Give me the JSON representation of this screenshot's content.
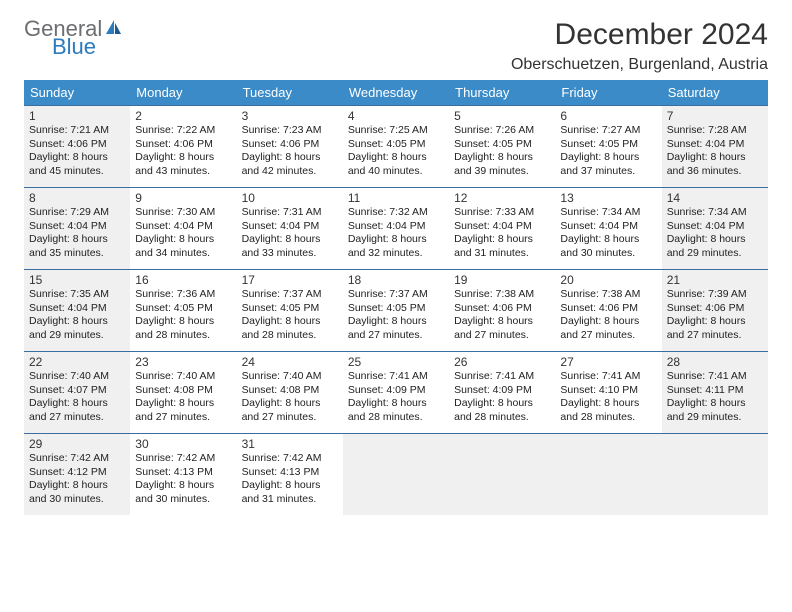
{
  "brand": {
    "part1": "General",
    "part2": "Blue"
  },
  "title": "December 2024",
  "location": "Oberschuetzen, Burgenland, Austria",
  "weekdays": [
    "Sunday",
    "Monday",
    "Tuesday",
    "Wednesday",
    "Thursday",
    "Friday",
    "Saturday"
  ],
  "colors": {
    "header_bg": "#3b8bc8",
    "header_text": "#ffffff",
    "border": "#3b6ea0",
    "shaded": "#f0f0f0",
    "logo_gray": "#6d6e71",
    "logo_blue": "#2b7bbf"
  },
  "weeks": [
    [
      {
        "n": "1",
        "shaded": true,
        "sunrise": "Sunrise: 7:21 AM",
        "sunset": "Sunset: 4:06 PM",
        "day1": "Daylight: 8 hours",
        "day2": "and 45 minutes."
      },
      {
        "n": "2",
        "sunrise": "Sunrise: 7:22 AM",
        "sunset": "Sunset: 4:06 PM",
        "day1": "Daylight: 8 hours",
        "day2": "and 43 minutes."
      },
      {
        "n": "3",
        "sunrise": "Sunrise: 7:23 AM",
        "sunset": "Sunset: 4:06 PM",
        "day1": "Daylight: 8 hours",
        "day2": "and 42 minutes."
      },
      {
        "n": "4",
        "sunrise": "Sunrise: 7:25 AM",
        "sunset": "Sunset: 4:05 PM",
        "day1": "Daylight: 8 hours",
        "day2": "and 40 minutes."
      },
      {
        "n": "5",
        "sunrise": "Sunrise: 7:26 AM",
        "sunset": "Sunset: 4:05 PM",
        "day1": "Daylight: 8 hours",
        "day2": "and 39 minutes."
      },
      {
        "n": "6",
        "sunrise": "Sunrise: 7:27 AM",
        "sunset": "Sunset: 4:05 PM",
        "day1": "Daylight: 8 hours",
        "day2": "and 37 minutes."
      },
      {
        "n": "7",
        "shaded": true,
        "sunrise": "Sunrise: 7:28 AM",
        "sunset": "Sunset: 4:04 PM",
        "day1": "Daylight: 8 hours",
        "day2": "and 36 minutes."
      }
    ],
    [
      {
        "n": "8",
        "shaded": true,
        "sunrise": "Sunrise: 7:29 AM",
        "sunset": "Sunset: 4:04 PM",
        "day1": "Daylight: 8 hours",
        "day2": "and 35 minutes."
      },
      {
        "n": "9",
        "sunrise": "Sunrise: 7:30 AM",
        "sunset": "Sunset: 4:04 PM",
        "day1": "Daylight: 8 hours",
        "day2": "and 34 minutes."
      },
      {
        "n": "10",
        "sunrise": "Sunrise: 7:31 AM",
        "sunset": "Sunset: 4:04 PM",
        "day1": "Daylight: 8 hours",
        "day2": "and 33 minutes."
      },
      {
        "n": "11",
        "sunrise": "Sunrise: 7:32 AM",
        "sunset": "Sunset: 4:04 PM",
        "day1": "Daylight: 8 hours",
        "day2": "and 32 minutes."
      },
      {
        "n": "12",
        "sunrise": "Sunrise: 7:33 AM",
        "sunset": "Sunset: 4:04 PM",
        "day1": "Daylight: 8 hours",
        "day2": "and 31 minutes."
      },
      {
        "n": "13",
        "sunrise": "Sunrise: 7:34 AM",
        "sunset": "Sunset: 4:04 PM",
        "day1": "Daylight: 8 hours",
        "day2": "and 30 minutes."
      },
      {
        "n": "14",
        "shaded": true,
        "sunrise": "Sunrise: 7:34 AM",
        "sunset": "Sunset: 4:04 PM",
        "day1": "Daylight: 8 hours",
        "day2": "and 29 minutes."
      }
    ],
    [
      {
        "n": "15",
        "shaded": true,
        "sunrise": "Sunrise: 7:35 AM",
        "sunset": "Sunset: 4:04 PM",
        "day1": "Daylight: 8 hours",
        "day2": "and 29 minutes."
      },
      {
        "n": "16",
        "sunrise": "Sunrise: 7:36 AM",
        "sunset": "Sunset: 4:05 PM",
        "day1": "Daylight: 8 hours",
        "day2": "and 28 minutes."
      },
      {
        "n": "17",
        "sunrise": "Sunrise: 7:37 AM",
        "sunset": "Sunset: 4:05 PM",
        "day1": "Daylight: 8 hours",
        "day2": "and 28 minutes."
      },
      {
        "n": "18",
        "sunrise": "Sunrise: 7:37 AM",
        "sunset": "Sunset: 4:05 PM",
        "day1": "Daylight: 8 hours",
        "day2": "and 27 minutes."
      },
      {
        "n": "19",
        "sunrise": "Sunrise: 7:38 AM",
        "sunset": "Sunset: 4:06 PM",
        "day1": "Daylight: 8 hours",
        "day2": "and 27 minutes."
      },
      {
        "n": "20",
        "sunrise": "Sunrise: 7:38 AM",
        "sunset": "Sunset: 4:06 PM",
        "day1": "Daylight: 8 hours",
        "day2": "and 27 minutes."
      },
      {
        "n": "21",
        "shaded": true,
        "sunrise": "Sunrise: 7:39 AM",
        "sunset": "Sunset: 4:06 PM",
        "day1": "Daylight: 8 hours",
        "day2": "and 27 minutes."
      }
    ],
    [
      {
        "n": "22",
        "shaded": true,
        "sunrise": "Sunrise: 7:40 AM",
        "sunset": "Sunset: 4:07 PM",
        "day1": "Daylight: 8 hours",
        "day2": "and 27 minutes."
      },
      {
        "n": "23",
        "sunrise": "Sunrise: 7:40 AM",
        "sunset": "Sunset: 4:08 PM",
        "day1": "Daylight: 8 hours",
        "day2": "and 27 minutes."
      },
      {
        "n": "24",
        "sunrise": "Sunrise: 7:40 AM",
        "sunset": "Sunset: 4:08 PM",
        "day1": "Daylight: 8 hours",
        "day2": "and 27 minutes."
      },
      {
        "n": "25",
        "sunrise": "Sunrise: 7:41 AM",
        "sunset": "Sunset: 4:09 PM",
        "day1": "Daylight: 8 hours",
        "day2": "and 28 minutes."
      },
      {
        "n": "26",
        "sunrise": "Sunrise: 7:41 AM",
        "sunset": "Sunset: 4:09 PM",
        "day1": "Daylight: 8 hours",
        "day2": "and 28 minutes."
      },
      {
        "n": "27",
        "sunrise": "Sunrise: 7:41 AM",
        "sunset": "Sunset: 4:10 PM",
        "day1": "Daylight: 8 hours",
        "day2": "and 28 minutes."
      },
      {
        "n": "28",
        "shaded": true,
        "sunrise": "Sunrise: 7:41 AM",
        "sunset": "Sunset: 4:11 PM",
        "day1": "Daylight: 8 hours",
        "day2": "and 29 minutes."
      }
    ],
    [
      {
        "n": "29",
        "shaded": true,
        "sunrise": "Sunrise: 7:42 AM",
        "sunset": "Sunset: 4:12 PM",
        "day1": "Daylight: 8 hours",
        "day2": "and 30 minutes."
      },
      {
        "n": "30",
        "sunrise": "Sunrise: 7:42 AM",
        "sunset": "Sunset: 4:13 PM",
        "day1": "Daylight: 8 hours",
        "day2": "and 30 minutes."
      },
      {
        "n": "31",
        "sunrise": "Sunrise: 7:42 AM",
        "sunset": "Sunset: 4:13 PM",
        "day1": "Daylight: 8 hours",
        "day2": "and 31 minutes."
      },
      {
        "empty": true,
        "shaded": true
      },
      {
        "empty": true,
        "shaded": true
      },
      {
        "empty": true,
        "shaded": true
      },
      {
        "empty": true,
        "shaded": true
      }
    ]
  ]
}
